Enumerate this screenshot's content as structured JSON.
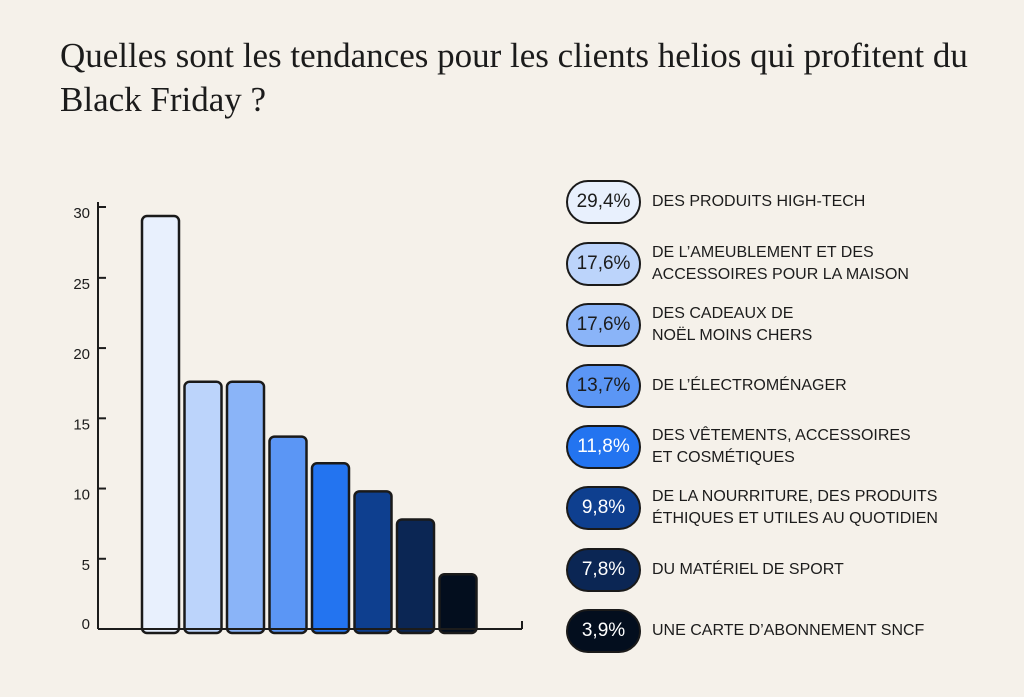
{
  "title": "Quelles sont les tendances pour les clients helios qui profitent du Black Friday ?",
  "chart_data": {
    "type": "bar",
    "categories": [
      "DES PRODUITS HIGH-TECH",
      "DE L’AMEUBLEMENT ET DES ACCESSOIRES POUR LA MAISON",
      "DES CADEAUX DE NOËL MOINS CHERS",
      "DE L’ÉLECTROMÉNAGER",
      "DES VÊTEMENTS, ACCESSOIRES ET COSMÉTIQUES",
      "DE LA NOURRITURE, DES PRODUITS ÉTHIQUES ET UTILES AU QUOTIDIEN",
      "DU MATÉRIEL DE SPORT",
      "UNE CARTE D’ABONNEMENT SNCF"
    ],
    "values": [
      29.4,
      17.6,
      17.6,
      13.7,
      11.8,
      9.8,
      7.8,
      3.9
    ],
    "colors": [
      "#e8f0fd",
      "#bcd4fb",
      "#8ab4f8",
      "#5b96f5",
      "#2374f0",
      "#0e3f8f",
      "#0b2654",
      "#030e1e"
    ],
    "ylim": [
      0,
      30
    ],
    "yticks": [
      0,
      5,
      10,
      15,
      20,
      25,
      30
    ],
    "grid": false,
    "legend": [
      {
        "value": "29,4%",
        "label": "DES PRODUITS HIGH-TECH",
        "text_color": "#1c1c1c"
      },
      {
        "value": "17,6%",
        "label": "DE L’AMEUBLEMENT ET DES\nACCESSOIRES POUR LA MAISON",
        "text_color": "#1c1c1c"
      },
      {
        "value": "17,6%",
        "label": "DES CADEAUX DE\nNOËL MOINS CHERS",
        "text_color": "#1c1c1c"
      },
      {
        "value": "13,7%",
        "label": "DE L’ÉLECTROMÉNAGER",
        "text_color": "#1c1c1c"
      },
      {
        "value": "11,8%",
        "label": "DES VÊTEMENTS, ACCESSOIRES\nET COSMÉTIQUES",
        "text_color": "#ffffff"
      },
      {
        "value": "9,8%",
        "label": "DE LA NOURRITURE, DES PRODUITS\nÉTHIQUES ET UTILES AU QUOTIDIEN",
        "text_color": "#ffffff"
      },
      {
        "value": "7,8%",
        "label": "DU MATÉRIEL DE SPORT",
        "text_color": "#ffffff"
      },
      {
        "value": "3,9%",
        "label": "UNE CARTE D’ABONNEMENT SNCF",
        "text_color": "#ffffff"
      }
    ]
  }
}
